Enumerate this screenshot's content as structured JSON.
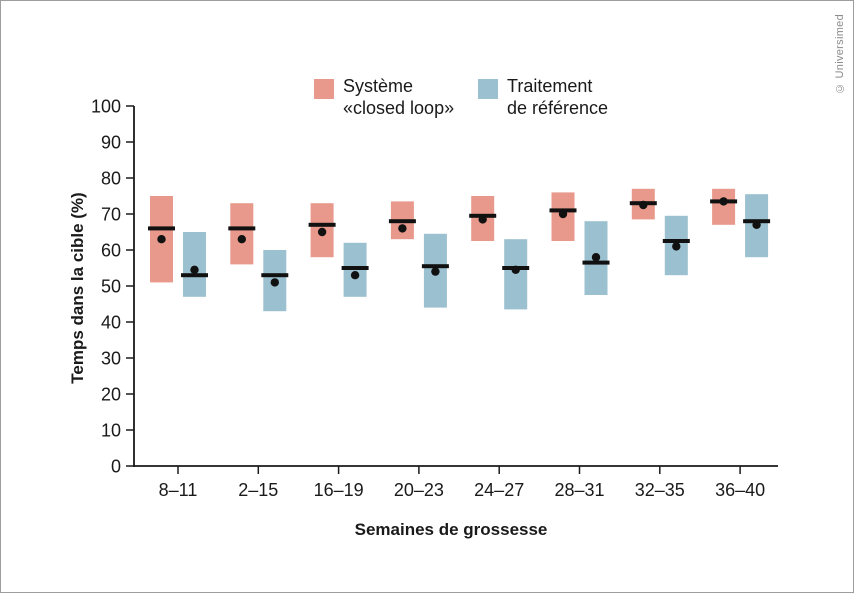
{
  "page": {
    "copyright": "© Universimed",
    "background": "#ffffff",
    "border_color": "#9d9d9d"
  },
  "legend": {
    "items": [
      {
        "line1": "Système",
        "line2": "«closed loop»"
      },
      {
        "line1": "Traitement",
        "line2": "de référence"
      }
    ]
  },
  "chart_data": {
    "type": "boxplot",
    "title": "",
    "xlabel": "Semaines de grossesse",
    "ylabel": "Temps dans la cible (%)",
    "categories": [
      "8–11",
      "2–15",
      "16–19",
      "20–23",
      "24–27",
      "28–31",
      "32–35",
      "36–40"
    ],
    "ylim": [
      0,
      100
    ],
    "yticks": [
      0,
      10,
      20,
      30,
      40,
      50,
      60,
      70,
      80,
      90,
      100
    ],
    "grid": false,
    "legend_position": "top",
    "axis_color": "#1a1a1a",
    "marker_color": "#111111",
    "series": [
      {
        "name": "Système «closed loop»",
        "color": "#E8998B",
        "boxes": [
          {
            "low": 51,
            "high": 75,
            "median": 66,
            "mean": 63
          },
          {
            "low": 56,
            "high": 73,
            "median": 66,
            "mean": 63
          },
          {
            "low": 58,
            "high": 73,
            "median": 67,
            "mean": 65
          },
          {
            "low": 63,
            "high": 73.5,
            "median": 68,
            "mean": 66
          },
          {
            "low": 62.5,
            "high": 75,
            "median": 69.5,
            "mean": 68.5
          },
          {
            "low": 62.5,
            "high": 76,
            "median": 71,
            "mean": 70
          },
          {
            "low": 68.5,
            "high": 77,
            "median": 73,
            "mean": 72.5
          },
          {
            "low": 67,
            "high": 77,
            "median": 73.5,
            "mean": 73.5
          }
        ]
      },
      {
        "name": "Traitement de référence",
        "color": "#9BC0CF",
        "boxes": [
          {
            "low": 47,
            "high": 65,
            "median": 53,
            "mean": 54.5
          },
          {
            "low": 43,
            "high": 60,
            "median": 53,
            "mean": 51
          },
          {
            "low": 47,
            "high": 62,
            "median": 55,
            "mean": 53
          },
          {
            "low": 44,
            "high": 64.5,
            "median": 55.5,
            "mean": 54
          },
          {
            "low": 43.5,
            "high": 63,
            "median": 55,
            "mean": 54.5
          },
          {
            "low": 47.5,
            "high": 68,
            "median": 56.5,
            "mean": 58
          },
          {
            "low": 53,
            "high": 69.5,
            "median": 62.5,
            "mean": 61
          },
          {
            "low": 58,
            "high": 75.5,
            "median": 68,
            "mean": 67
          }
        ]
      }
    ]
  }
}
